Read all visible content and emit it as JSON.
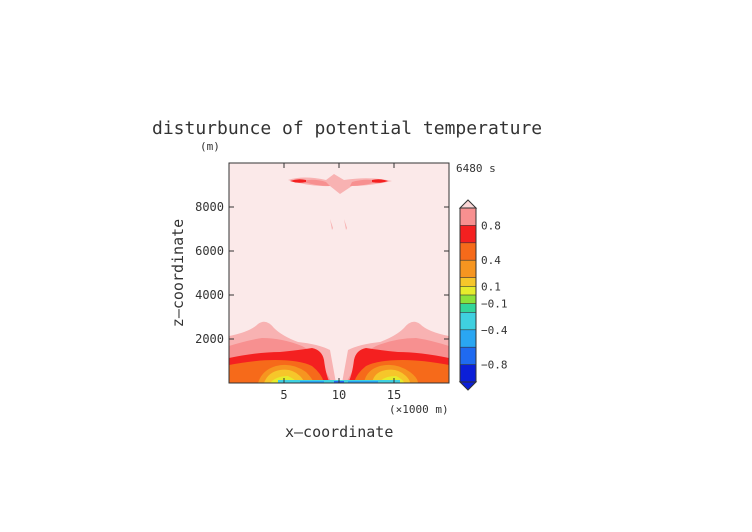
{
  "chart_data": {
    "type": "heatmap",
    "title": "disturbunce of potential temperature",
    "xlabel": "x—coordinate",
    "ylabel": "z—coordinate",
    "x_unit": "(×1000 m)",
    "y_unit": "(m)",
    "time_label": "6480 s",
    "xlim": [
      0,
      20
    ],
    "ylim": [
      0,
      10000
    ],
    "x_ticks": [
      5,
      10,
      15
    ],
    "y_ticks": [
      2000,
      4000,
      6000,
      8000
    ],
    "grid": false,
    "colorbar": {
      "levels": [
        -1.0,
        -0.8,
        -0.6,
        -0.4,
        -0.2,
        -0.1,
        0.0,
        0.1,
        0.2,
        0.4,
        0.6,
        0.8,
        1.0
      ],
      "colors": [
        "#0b1fd8",
        "#1f6af0",
        "#2aa6f2",
        "#3fd0e0",
        "#32d69a",
        "#8be23a",
        "#e6ec2c",
        "#f6c62a",
        "#f69520",
        "#f66a1a",
        "#f42020",
        "#f79090",
        "#fbd7d7"
      ],
      "labels": [
        "0.8",
        "0.4",
        "0.1",
        "−0.1",
        "−0.4",
        "−0.8"
      ],
      "label_values": [
        0.8,
        0.4,
        0.1,
        -0.1,
        -0.4,
        -0.8
      ],
      "extend": "both"
    }
  }
}
